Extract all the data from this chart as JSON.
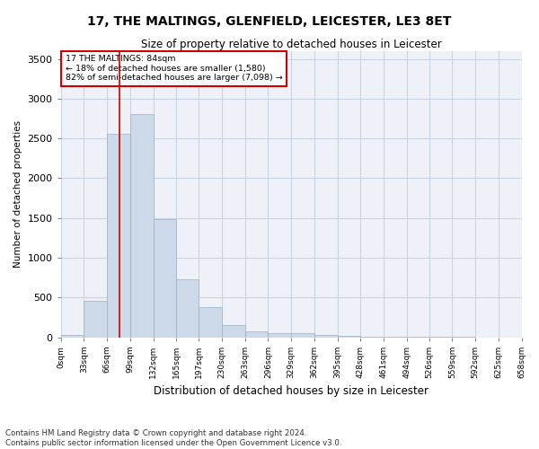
{
  "title": "17, THE MALTINGS, GLENFIELD, LEICESTER, LE3 8ET",
  "subtitle": "Size of property relative to detached houses in Leicester",
  "xlabel": "Distribution of detached houses by size in Leicester",
  "ylabel": "Number of detached properties",
  "footnote1": "Contains HM Land Registry data © Crown copyright and database right 2024.",
  "footnote2": "Contains public sector information licensed under the Open Government Licence v3.0.",
  "annotation_title": "17 THE MALTINGS: 84sqm",
  "annotation_line2": "← 18% of detached houses are smaller (1,580)",
  "annotation_line3": "82% of semi-detached houses are larger (7,098) →",
  "property_sqm": 84,
  "bar_color": "#ccd9e8",
  "bar_edge_color": "#9ab0c8",
  "vline_color": "#cc0000",
  "annotation_box_color": "#cc0000",
  "grid_color": "#c8d4e4",
  "background_color": "#eef2f8",
  "bins": [
    0,
    33,
    66,
    99,
    132,
    165,
    197,
    230,
    263,
    296,
    329,
    362,
    395,
    428,
    461,
    494,
    526,
    559,
    592,
    625,
    658
  ],
  "bin_labels": [
    "0sqm",
    "33sqm",
    "66sqm",
    "99sqm",
    "132sqm",
    "165sqm",
    "197sqm",
    "230sqm",
    "263sqm",
    "296sqm",
    "329sqm",
    "362sqm",
    "395sqm",
    "428sqm",
    "461sqm",
    "494sqm",
    "526sqm",
    "559sqm",
    "592sqm",
    "625sqm",
    "658sqm"
  ],
  "counts": [
    30,
    460,
    2560,
    2810,
    1490,
    730,
    380,
    155,
    80,
    55,
    50,
    30,
    15,
    10,
    7,
    5,
    3,
    3,
    2,
    2
  ],
  "ylim": [
    0,
    3600
  ],
  "yticks": [
    0,
    500,
    1000,
    1500,
    2000,
    2500,
    3000,
    3500
  ]
}
